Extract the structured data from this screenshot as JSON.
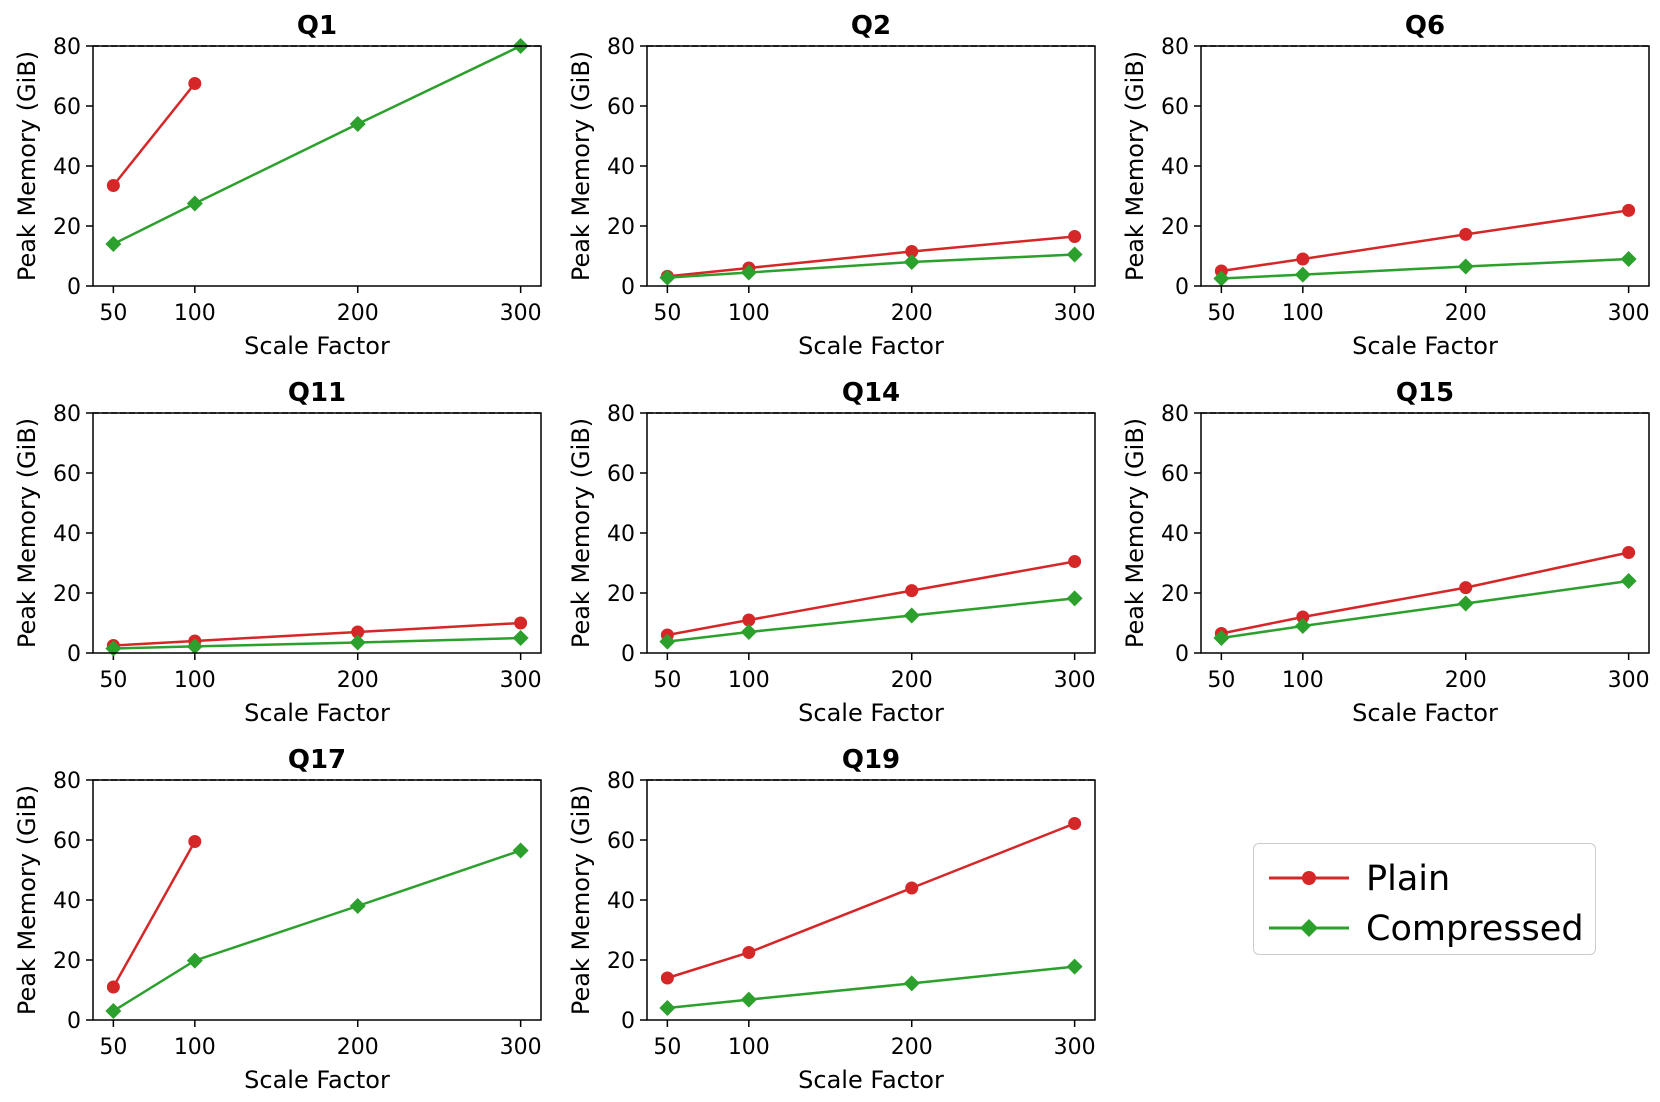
{
  "chart_data": [
    {
      "type": "line",
      "title": "Q1",
      "xlabel": "Scale Factor",
      "ylabel": "Peak Memory (GiB)",
      "xticks": [
        50,
        100,
        200,
        300
      ],
      "yticks": [
        0,
        20,
        40,
        60,
        80
      ],
      "ylim": [
        0,
        80
      ],
      "reference_line": 80,
      "series": [
        {
          "name": "Plain",
          "x": [
            50,
            100
          ],
          "values": [
            33.5,
            67.5
          ]
        },
        {
          "name": "Compressed",
          "x": [
            50,
            100,
            200,
            300
          ],
          "values": [
            14,
            27.5,
            54,
            80
          ]
        }
      ]
    },
    {
      "type": "line",
      "title": "Q2",
      "xlabel": "Scale Factor",
      "ylabel": "Peak Memory (GiB)",
      "xticks": [
        50,
        100,
        200,
        300
      ],
      "yticks": [
        0,
        20,
        40,
        60,
        80
      ],
      "ylim": [
        0,
        80
      ],
      "reference_line": 80,
      "series": [
        {
          "name": "Plain",
          "x": [
            50,
            100,
            200,
            300
          ],
          "values": [
            3.2,
            6,
            11.5,
            16.5
          ]
        },
        {
          "name": "Compressed",
          "x": [
            50,
            100,
            200,
            300
          ],
          "values": [
            2.8,
            4.5,
            8,
            10.5
          ]
        }
      ]
    },
    {
      "type": "line",
      "title": "Q6",
      "xlabel": "Scale Factor",
      "ylabel": "Peak Memory (GiB)",
      "xticks": [
        50,
        100,
        200,
        300
      ],
      "yticks": [
        0,
        20,
        40,
        60,
        80
      ],
      "ylim": [
        0,
        80
      ],
      "reference_line": 80,
      "series": [
        {
          "name": "Plain",
          "x": [
            50,
            100,
            200,
            300
          ],
          "values": [
            5,
            9,
            17.2,
            25.2
          ]
        },
        {
          "name": "Compressed",
          "x": [
            50,
            100,
            200,
            300
          ],
          "values": [
            2.5,
            3.8,
            6.5,
            9
          ]
        }
      ]
    },
    {
      "type": "line",
      "title": "Q11",
      "xlabel": "Scale Factor",
      "ylabel": "Peak Memory (GiB)",
      "xticks": [
        50,
        100,
        200,
        300
      ],
      "yticks": [
        0,
        20,
        40,
        60,
        80
      ],
      "ylim": [
        0,
        80
      ],
      "reference_line": 80,
      "series": [
        {
          "name": "Plain",
          "x": [
            50,
            100,
            200,
            300
          ],
          "values": [
            2.5,
            4,
            7,
            10
          ]
        },
        {
          "name": "Compressed",
          "x": [
            50,
            100,
            200,
            300
          ],
          "values": [
            1.5,
            2.2,
            3.5,
            5
          ]
        }
      ]
    },
    {
      "type": "line",
      "title": "Q14",
      "xlabel": "Scale Factor",
      "ylabel": "Peak Memory (GiB)",
      "xticks": [
        50,
        100,
        200,
        300
      ],
      "yticks": [
        0,
        20,
        40,
        60,
        80
      ],
      "ylim": [
        0,
        80
      ],
      "reference_line": 80,
      "series": [
        {
          "name": "Plain",
          "x": [
            50,
            100,
            200,
            300
          ],
          "values": [
            6,
            11,
            20.8,
            30.5
          ]
        },
        {
          "name": "Compressed",
          "x": [
            50,
            100,
            200,
            300
          ],
          "values": [
            3.8,
            7,
            12.5,
            18.2
          ]
        }
      ]
    },
    {
      "type": "line",
      "title": "Q15",
      "xlabel": "Scale Factor",
      "ylabel": "Peak Memory (GiB)",
      "xticks": [
        50,
        100,
        200,
        300
      ],
      "yticks": [
        0,
        20,
        40,
        60,
        80
      ],
      "ylim": [
        0,
        80
      ],
      "reference_line": 80,
      "series": [
        {
          "name": "Plain",
          "x": [
            50,
            100,
            200,
            300
          ],
          "values": [
            6.5,
            12,
            21.8,
            33.5
          ]
        },
        {
          "name": "Compressed",
          "x": [
            50,
            100,
            200,
            300
          ],
          "values": [
            5,
            9,
            16.5,
            24
          ]
        }
      ]
    },
    {
      "type": "line",
      "title": "Q17",
      "xlabel": "Scale Factor",
      "ylabel": "Peak Memory (GiB)",
      "xticks": [
        50,
        100,
        200,
        300
      ],
      "yticks": [
        0,
        20,
        40,
        60,
        80
      ],
      "ylim": [
        0,
        80
      ],
      "reference_line": 80,
      "series": [
        {
          "name": "Plain",
          "x": [
            50,
            100
          ],
          "values": [
            11,
            59.5
          ]
        },
        {
          "name": "Compressed",
          "x": [
            50,
            100,
            200,
            300
          ],
          "values": [
            3,
            19.8,
            38,
            56.5
          ]
        }
      ]
    },
    {
      "type": "line",
      "title": "Q19",
      "xlabel": "Scale Factor",
      "ylabel": "Peak Memory (GiB)",
      "xticks": [
        50,
        100,
        200,
        300
      ],
      "yticks": [
        0,
        20,
        40,
        60,
        80
      ],
      "ylim": [
        0,
        80
      ],
      "reference_line": 80,
      "series": [
        {
          "name": "Plain",
          "x": [
            50,
            100,
            200,
            300
          ],
          "values": [
            14,
            22.5,
            44,
            65.5
          ]
        },
        {
          "name": "Compressed",
          "x": [
            50,
            100,
            200,
            300
          ],
          "values": [
            4,
            6.8,
            12.2,
            17.8
          ]
        }
      ]
    }
  ],
  "legend": {
    "items": [
      {
        "label": "Plain",
        "color": "#d62728",
        "marker": "circle"
      },
      {
        "label": "Compressed",
        "color": "#2ca02c",
        "marker": "diamond"
      }
    ]
  },
  "colors": {
    "plain": "#d62728",
    "compressed": "#2ca02c"
  }
}
